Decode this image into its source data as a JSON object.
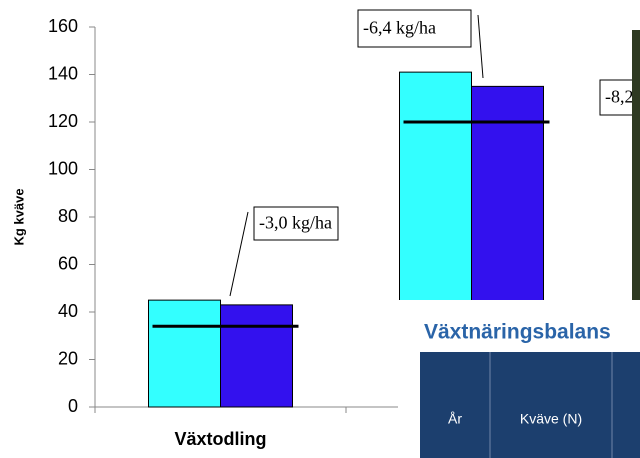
{
  "chart_data": {
    "type": "bar",
    "y_label": "Kg kväve",
    "categories": [
      "Växtodling",
      null
    ],
    "series": [
      {
        "color": "#33ffff",
        "values": [
          45,
          141
        ]
      },
      {
        "color": "#3311ee",
        "values": [
          43,
          135
        ]
      }
    ],
    "reference_values": [
      34,
      120
    ],
    "annotations": [
      "-3,0 kg/ha",
      "-6,4 kg/ha",
      "-8,2"
    ],
    "ylim": [
      0,
      160
    ],
    "yticks": [
      0,
      20,
      40,
      60,
      80,
      100,
      120,
      140,
      160
    ]
  },
  "overlay": {
    "title": "Växtnäringsbalans",
    "table": {
      "headers": [
        "År",
        "Kväve (N)"
      ]
    }
  }
}
